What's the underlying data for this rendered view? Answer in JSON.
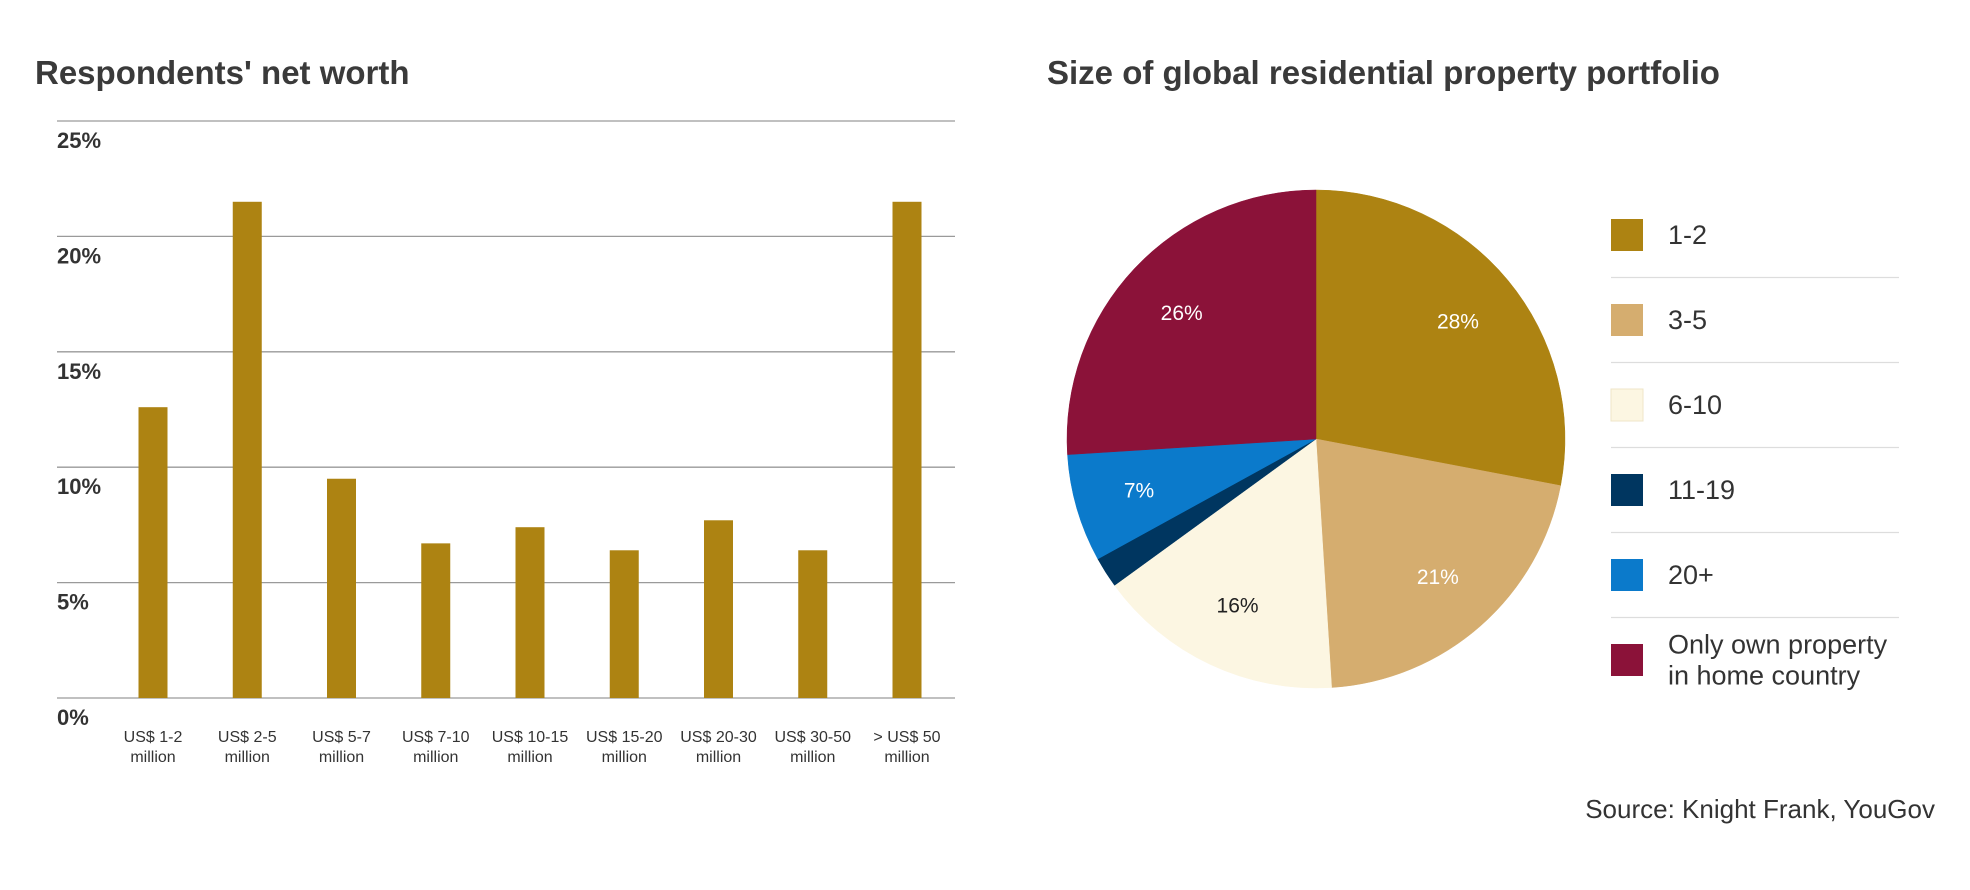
{
  "chart_data": [
    {
      "type": "bar",
      "title": "Respondents' net worth",
      "xlabel": "",
      "ylabel": "",
      "categories": [
        [
          "US$ 1-2",
          "million"
        ],
        [
          "US$ 2-5",
          "million"
        ],
        [
          "US$ 5-7",
          "million"
        ],
        [
          "US$ 7-10",
          "million"
        ],
        [
          "US$ 10-15",
          "million"
        ],
        [
          "US$ 15-20",
          "million"
        ],
        [
          "US$ 20-30",
          "million"
        ],
        [
          "US$ 30-50",
          "million"
        ],
        [
          "> US$ 50",
          "million"
        ]
      ],
      "values": [
        12.6,
        21.5,
        9.5,
        6.7,
        7.4,
        6.4,
        7.7,
        6.4,
        21.5
      ],
      "yticks": [
        "0%",
        "5%",
        "10%",
        "15%",
        "20%",
        "25%"
      ],
      "ylim": [
        0,
        25
      ],
      "grid": true,
      "bar_color": "#ad8312"
    },
    {
      "type": "pie",
      "title": "Size of global residential property portfolio",
      "slices": [
        {
          "name": "1-2",
          "value": 28,
          "label": "28%",
          "color": "#ad8312",
          "label_color": "#ffffff"
        },
        {
          "name": "3-5",
          "value": 21,
          "label": "21%",
          "color": "#d5ad6f",
          "label_color": "#ffffff"
        },
        {
          "name": "6-10",
          "value": 16,
          "label": "16%",
          "color": "#fcf6e2",
          "label_color": "#222222"
        },
        {
          "name": "11-19",
          "value": 2,
          "label": "",
          "color": "#003660",
          "label_color": "#ffffff"
        },
        {
          "name": "20+",
          "value": 7,
          "label": "7%",
          "color": "#0b7acb",
          "label_color": "#ffffff"
        },
        {
          "name": "Only own property in home country",
          "value": 26,
          "label": "26%",
          "color": "#8b1239",
          "label_color": "#ffffff"
        }
      ],
      "legend": {
        "position": "right",
        "entries": [
          [
            "1-2"
          ],
          [
            "3-5"
          ],
          [
            "6-10"
          ],
          [
            "11-19"
          ],
          [
            "20+"
          ],
          [
            "Only own property",
            "in home country"
          ]
        ]
      }
    }
  ],
  "source": "Source: Knight Frank, YouGov"
}
